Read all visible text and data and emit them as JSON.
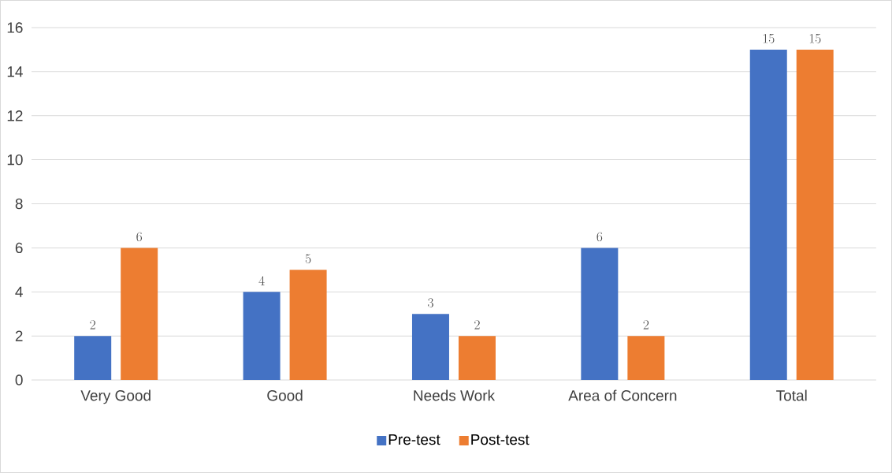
{
  "chart_data": {
    "type": "bar",
    "categories": [
      "Very Good",
      "Good",
      "Needs Work",
      "Area of Concern",
      "Total"
    ],
    "series": [
      {
        "name": "Pre-test",
        "color": "#4472c4",
        "values": [
          2,
          4,
          3,
          6,
          15
        ]
      },
      {
        "name": "Post-test",
        "color": "#ed7d31",
        "values": [
          6,
          5,
          2,
          2,
          15
        ]
      }
    ],
    "ylim": [
      0,
      16
    ],
    "yticks": [
      0,
      2,
      4,
      6,
      8,
      10,
      12,
      14,
      16
    ],
    "grid": "y",
    "legend": "bottom",
    "data_labels": true
  }
}
